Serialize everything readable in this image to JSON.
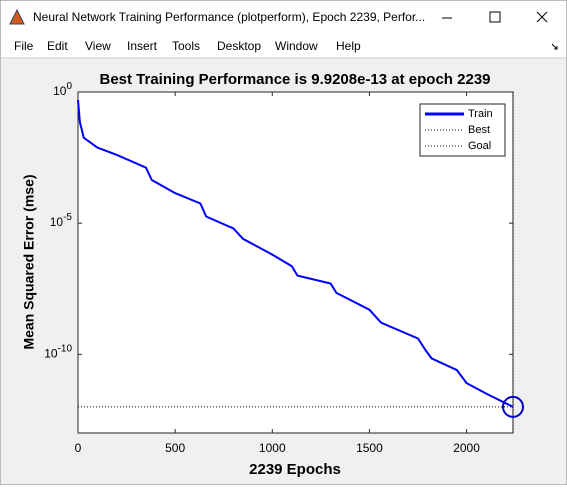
{
  "window": {
    "title": "Neural Network Training Performance (plotperform), Epoch 2239, Perfor...",
    "menu": [
      "File",
      "Edit",
      "View",
      "Insert",
      "Tools",
      "Desktop",
      "Window",
      "Help"
    ]
  },
  "chart_data": {
    "type": "line",
    "title": "Best Training Performance is 9.9208e-13 at epoch 2239",
    "x_label": "2239 Epochs",
    "y_label": "Mean Squared Error  (mse)",
    "log_y": true,
    "xlim": [
      0,
      2239
    ],
    "xticks": [
      0,
      500,
      1000,
      1500,
      2000
    ],
    "ylim": [
      1e-13,
      1
    ],
    "yticks": [
      {
        "value": 1,
        "label": "10^0"
      },
      {
        "value": 1e-05,
        "label": "10^-5"
      },
      {
        "value": 1e-10,
        "label": "10^-10"
      }
    ],
    "series": [
      {
        "name": "Train",
        "color": "#0000ff",
        "x": [
          0,
          10,
          30,
          100,
          200,
          350,
          380,
          500,
          630,
          660,
          800,
          850,
          1000,
          1100,
          1130,
          1300,
          1330,
          1500,
          1560,
          1750,
          1790,
          1820,
          1950,
          2000,
          2100,
          2239
        ],
        "values": [
          0.5,
          0.07,
          0.018,
          0.0076,
          0.004,
          0.0013,
          0.00044,
          0.00014,
          5.6e-05,
          1.8e-05,
          6.3e-06,
          2.5e-06,
          6.3e-07,
          2.3e-07,
          1e-07,
          5e-08,
          2.2e-08,
          5e-09,
          1.6e-09,
          4e-10,
          1.4e-10,
          7e-11,
          2.5e-11,
          8e-12,
          3.2e-12,
          9.9208e-13
        ]
      }
    ],
    "best": {
      "name": "Best",
      "x": 2239,
      "value": 9.9208e-13
    },
    "goal": {
      "name": "Goal"
    },
    "legend": "top-right"
  }
}
